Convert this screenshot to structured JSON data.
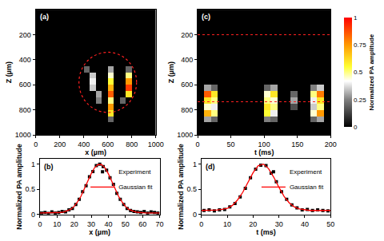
{
  "chart_data": [
    {
      "type": "heatmap",
      "panel_label": "(a)",
      "x_label": "x (µm)",
      "y_label": "Z (µm)",
      "x": [
        25,
        75,
        125,
        175,
        225,
        275,
        325,
        375,
        425,
        475,
        525,
        575,
        625,
        675,
        725,
        775,
        825,
        875,
        925,
        975
      ],
      "y": [
        25,
        75,
        125,
        175,
        225,
        275,
        325,
        375,
        425,
        475,
        525,
        575,
        625,
        675,
        725,
        775,
        825,
        875,
        925,
        975
      ],
      "cells": [
        [
          0,
          0,
          0,
          0,
          0,
          0,
          0,
          0,
          0,
          0,
          0,
          0,
          0,
          0,
          0,
          0,
          0,
          0,
          0,
          0
        ],
        [
          0,
          0,
          0,
          0,
          0,
          0,
          0,
          0,
          0,
          0,
          0,
          0,
          0,
          0,
          0,
          0,
          0,
          0,
          0,
          0
        ],
        [
          0,
          0,
          0,
          0,
          0,
          0,
          0,
          0,
          0,
          0,
          0,
          0,
          0,
          0,
          0,
          0,
          0,
          0,
          0,
          0
        ],
        [
          0,
          0,
          0,
          0,
          0,
          0,
          0,
          0,
          0,
          0,
          0,
          0,
          0,
          0,
          0,
          0,
          0,
          0,
          0,
          0
        ],
        [
          0,
          0,
          0,
          0,
          0,
          0,
          0,
          0,
          0,
          0,
          0,
          0,
          0,
          0,
          0,
          0,
          0,
          0,
          0,
          0
        ],
        [
          0,
          0,
          0,
          0,
          0,
          0,
          0,
          0,
          0,
          0,
          0,
          0,
          0,
          0,
          0,
          0,
          0,
          0,
          0,
          0
        ],
        [
          0,
          0,
          0,
          0,
          0,
          0,
          0,
          0,
          0,
          0,
          0,
          0,
          0,
          0,
          0,
          0,
          0,
          0,
          0,
          0
        ],
        [
          0,
          0,
          0,
          0,
          0,
          0,
          0,
          0,
          0,
          0,
          0,
          0,
          0,
          0,
          0,
          0,
          0,
          0,
          0,
          0
        ],
        [
          0,
          0,
          0,
          0,
          0,
          0,
          0,
          0,
          0,
          0,
          0,
          0,
          0,
          0,
          0,
          0,
          0,
          0,
          0,
          0
        ],
        [
          0,
          0,
          0,
          0,
          0,
          0,
          0,
          0,
          0.2,
          0,
          0,
          0,
          0.3,
          0,
          0,
          0.2,
          0,
          0,
          0,
          0
        ],
        [
          0,
          0,
          0,
          0,
          0,
          0,
          0,
          0,
          0,
          0.35,
          0,
          0,
          0.45,
          0,
          0,
          0.5,
          0,
          0,
          0,
          0
        ],
        [
          0,
          0,
          0,
          0,
          0,
          0,
          0,
          0,
          0,
          0.4,
          0,
          0,
          0.55,
          0,
          0,
          0.75,
          0,
          0,
          0,
          0
        ],
        [
          0,
          0,
          0,
          0,
          0,
          0,
          0,
          0,
          0,
          0.35,
          0,
          0,
          0.7,
          0,
          0,
          0.9,
          0,
          0,
          0,
          0
        ],
        [
          0,
          0,
          0,
          0,
          0,
          0,
          0,
          0,
          0,
          0,
          0.3,
          0,
          0.85,
          0,
          0,
          0.6,
          0,
          0,
          0,
          0
        ],
        [
          0,
          0,
          0,
          0,
          0,
          0,
          0,
          0,
          0,
          0,
          0.25,
          0,
          0.5,
          0,
          0.2,
          0,
          0,
          0,
          0,
          0
        ],
        [
          0,
          0,
          0,
          0,
          0,
          0,
          0,
          0,
          0,
          0,
          0,
          0,
          0.75,
          0,
          0,
          0,
          0,
          0,
          0,
          0
        ],
        [
          0,
          0,
          0,
          0,
          0,
          0,
          0,
          0,
          0,
          0,
          0,
          0,
          0.6,
          0,
          0,
          0,
          0,
          0,
          0,
          0
        ],
        [
          0,
          0,
          0,
          0,
          0,
          0,
          0,
          0,
          0,
          0,
          0,
          0,
          0.2,
          0,
          0,
          0,
          0,
          0,
          0,
          0
        ],
        [
          0,
          0,
          0,
          0,
          0,
          0,
          0,
          0,
          0,
          0,
          0,
          0,
          0,
          0,
          0,
          0,
          0,
          0,
          0,
          0
        ],
        [
          0,
          0,
          0,
          0,
          0,
          0,
          0,
          0,
          0,
          0,
          0,
          0,
          0,
          0,
          0,
          0,
          0,
          0,
          0,
          0
        ]
      ],
      "xlim": [
        0,
        1000
      ],
      "xticks": [
        0,
        200,
        400,
        600,
        800,
        1000
      ],
      "ylim": [
        1000,
        0
      ],
      "yticks": [
        200,
        400,
        600,
        800,
        1000
      ],
      "roi_circle": {
        "x": [
          360,
          840
        ],
        "y": [
          340,
          820
        ]
      }
    },
    {
      "type": "scatter",
      "panel_label": "(b)",
      "x_label": "x (µm)",
      "y_label": "Normalized PA amplitude",
      "series": [
        {
          "name": "Experiment",
          "type": "scatter",
          "marker": "square",
          "color": "#000000",
          "x": [
            1,
            3,
            5,
            7,
            9,
            11,
            13,
            15,
            17,
            19,
            21,
            23,
            25,
            27,
            29,
            31,
            33,
            35,
            37,
            39,
            41,
            43,
            45,
            47,
            49,
            51,
            53,
            55,
            57,
            59,
            61,
            63,
            65,
            67,
            69
          ],
          "values": [
            0.03,
            0.04,
            0.02,
            0.05,
            0.03,
            0.04,
            0.06,
            0.05,
            0.09,
            0.12,
            0.2,
            0.3,
            0.45,
            0.57,
            0.75,
            0.85,
            0.97,
            1.0,
            0.95,
            0.88,
            0.73,
            0.6,
            0.42,
            0.3,
            0.2,
            0.12,
            0.08,
            0.06,
            0.05,
            0.04,
            0.06,
            0.03,
            0.05,
            0.04,
            0.03
          ]
        },
        {
          "name": "Gaussian fit",
          "type": "line",
          "line_style": "solid",
          "color": "#ff0000",
          "x": [
            0,
            2,
            4,
            6,
            8,
            10,
            12,
            14,
            16,
            18,
            20,
            22,
            24,
            26,
            28,
            30,
            32,
            34,
            36,
            38,
            40,
            42,
            44,
            46,
            48,
            50,
            52,
            54,
            56,
            58,
            60,
            62,
            64,
            66,
            68,
            70
          ],
          "values": [
            0.03,
            0.03,
            0.03,
            0.03,
            0.03,
            0.03,
            0.04,
            0.05,
            0.07,
            0.1,
            0.16,
            0.25,
            0.36,
            0.5,
            0.66,
            0.81,
            0.93,
            0.99,
            0.99,
            0.93,
            0.81,
            0.66,
            0.5,
            0.36,
            0.25,
            0.16,
            0.1,
            0.07,
            0.05,
            0.04,
            0.03,
            0.03,
            0.03,
            0.03,
            0.03,
            0.03
          ]
        }
      ],
      "xlim": [
        0,
        70
      ],
      "xticks": [
        0,
        10,
        20,
        30,
        40,
        50,
        60,
        70
      ],
      "ylim": [
        0,
        1.1
      ],
      "yticks": [
        0,
        0.5,
        1
      ],
      "legend": "upper right"
    },
    {
      "type": "heatmap",
      "panel_label": "(c)",
      "x_label": "t (ms)",
      "y_label": "Z (µm)",
      "x": [
        5,
        15,
        25,
        35,
        45,
        55,
        65,
        75,
        85,
        95,
        105,
        115,
        125,
        135,
        145,
        155,
        165,
        175,
        185,
        195
      ],
      "y": [
        25,
        75,
        125,
        175,
        225,
        275,
        325,
        375,
        425,
        475,
        525,
        575,
        625,
        675,
        725,
        775,
        825,
        875,
        925,
        975
      ],
      "cells": [
        [
          0,
          0,
          0,
          0,
          0,
          0,
          0,
          0,
          0,
          0,
          0,
          0,
          0,
          0,
          0,
          0,
          0,
          0,
          0,
          0
        ],
        [
          0,
          0,
          0,
          0,
          0,
          0,
          0,
          0,
          0,
          0,
          0,
          0,
          0,
          0,
          0,
          0,
          0,
          0,
          0,
          0
        ],
        [
          0,
          0,
          0,
          0,
          0,
          0,
          0,
          0,
          0,
          0,
          0,
          0,
          0,
          0,
          0,
          0,
          0,
          0,
          0,
          0
        ],
        [
          0,
          0,
          0,
          0,
          0,
          0,
          0,
          0,
          0,
          0,
          0,
          0,
          0,
          0,
          0,
          0,
          0,
          0,
          0,
          0
        ],
        [
          0,
          0,
          0,
          0,
          0,
          0,
          0,
          0,
          0,
          0,
          0,
          0,
          0,
          0,
          0,
          0,
          0,
          0,
          0,
          0
        ],
        [
          0,
          0,
          0,
          0,
          0,
          0,
          0,
          0,
          0,
          0,
          0,
          0,
          0,
          0,
          0,
          0,
          0,
          0,
          0,
          0
        ],
        [
          0,
          0,
          0,
          0,
          0,
          0,
          0,
          0,
          0,
          0,
          0,
          0,
          0,
          0,
          0,
          0,
          0,
          0,
          0,
          0
        ],
        [
          0,
          0,
          0,
          0,
          0,
          0,
          0,
          0,
          0,
          0,
          0,
          0,
          0,
          0,
          0,
          0,
          0,
          0,
          0,
          0
        ],
        [
          0,
          0,
          0,
          0,
          0,
          0,
          0,
          0,
          0,
          0,
          0,
          0,
          0,
          0,
          0,
          0,
          0,
          0,
          0,
          0
        ],
        [
          0,
          0,
          0,
          0,
          0,
          0,
          0,
          0,
          0,
          0,
          0,
          0,
          0,
          0,
          0,
          0,
          0,
          0,
          0,
          0
        ],
        [
          0,
          0,
          0,
          0,
          0,
          0,
          0,
          0,
          0,
          0,
          0,
          0,
          0,
          0,
          0,
          0,
          0,
          0,
          0,
          0
        ],
        [
          0,
          0,
          0,
          0,
          0,
          0,
          0,
          0,
          0,
          0,
          0,
          0,
          0,
          0,
          0,
          0,
          0,
          0,
          0,
          0
        ],
        [
          0,
          0.3,
          0.2,
          0,
          0,
          0,
          0,
          0,
          0,
          0,
          0.2,
          0.3,
          0,
          0,
          0,
          0,
          0,
          0.25,
          0.35,
          0
        ],
        [
          0,
          0.85,
          0.6,
          0,
          0,
          0,
          0,
          0,
          0,
          0,
          0.45,
          0.6,
          0,
          0,
          0.2,
          0,
          0,
          0.5,
          0.8,
          0
        ],
        [
          0,
          0.6,
          0.5,
          0,
          0,
          0,
          0,
          0,
          0,
          0,
          0.5,
          0.45,
          0,
          0,
          0.3,
          0,
          0,
          0.4,
          0.6,
          0
        ],
        [
          0,
          0.45,
          0.4,
          0,
          0,
          0,
          0,
          0,
          0,
          0,
          0.6,
          0.5,
          0,
          0,
          0.15,
          0,
          0,
          0.35,
          0.5,
          0
        ],
        [
          0,
          0.7,
          0.5,
          0,
          0,
          0,
          0,
          0,
          0,
          0,
          0.55,
          0.4,
          0,
          0,
          0,
          0,
          0,
          0.45,
          0.75,
          0
        ],
        [
          0,
          0.3,
          0.2,
          0,
          0,
          0,
          0,
          0,
          0,
          0,
          0.25,
          0.2,
          0,
          0,
          0,
          0,
          0,
          0.2,
          0.3,
          0
        ],
        [
          0,
          0,
          0,
          0,
          0,
          0,
          0,
          0,
          0,
          0,
          0,
          0,
          0,
          0,
          0,
          0,
          0,
          0,
          0,
          0
        ],
        [
          0,
          0,
          0,
          0,
          0,
          0,
          0,
          0,
          0,
          0,
          0,
          0,
          0,
          0,
          0,
          0,
          0,
          0,
          0,
          0
        ]
      ],
      "xlim": [
        0,
        200
      ],
      "xticks": [
        0,
        50,
        100,
        150,
        200
      ],
      "ylim": [
        1000,
        0
      ],
      "yticks": [
        200,
        400,
        600,
        800,
        1000
      ],
      "marked_z": [
        200,
        735
      ],
      "colorbar": {
        "title": "Normalized PA amplitude",
        "range": [
          0,
          1
        ],
        "ticks": [
          0,
          0.25,
          0.5,
          0.75,
          1
        ]
      }
    },
    {
      "type": "scatter",
      "panel_label": "(d)",
      "x_label": "t (ms)",
      "y_label": "Normalized PA amplitude",
      "series": [
        {
          "name": "Experiment",
          "type": "scatter",
          "marker": "square",
          "color": "#000000",
          "x": [
            1,
            3,
            5,
            7,
            9,
            11,
            13,
            15,
            17,
            19,
            21,
            23,
            25,
            27,
            29,
            31,
            33,
            35,
            37,
            39,
            41,
            43,
            45,
            47,
            49
          ],
          "values": [
            0.08,
            0.09,
            0.07,
            0.09,
            0.1,
            0.15,
            0.22,
            0.35,
            0.52,
            0.73,
            0.9,
            0.98,
            0.97,
            0.82,
            0.65,
            0.45,
            0.3,
            0.19,
            0.13,
            0.09,
            0.1,
            0.08,
            0.09,
            0.08,
            0.07
          ]
        },
        {
          "name": "Gaussian fit",
          "type": "line",
          "line_style": "solid",
          "color": "#ff0000",
          "x": [
            0,
            2,
            4,
            6,
            8,
            10,
            12,
            14,
            16,
            18,
            20,
            22,
            24,
            26,
            28,
            30,
            32,
            34,
            36,
            38,
            40,
            42,
            44,
            46,
            48,
            50
          ],
          "values": [
            0.08,
            0.08,
            0.08,
            0.09,
            0.1,
            0.12,
            0.18,
            0.29,
            0.44,
            0.64,
            0.83,
            0.97,
            1.0,
            0.91,
            0.74,
            0.54,
            0.36,
            0.23,
            0.15,
            0.11,
            0.09,
            0.08,
            0.08,
            0.08,
            0.08,
            0.08
          ]
        }
      ],
      "xlim": [
        0,
        50
      ],
      "xticks": [
        0,
        10,
        20,
        30,
        40,
        50
      ],
      "ylim": [
        0,
        1.1
      ],
      "yticks": [
        0,
        0.5,
        1
      ],
      "legend": "upper right"
    }
  ]
}
